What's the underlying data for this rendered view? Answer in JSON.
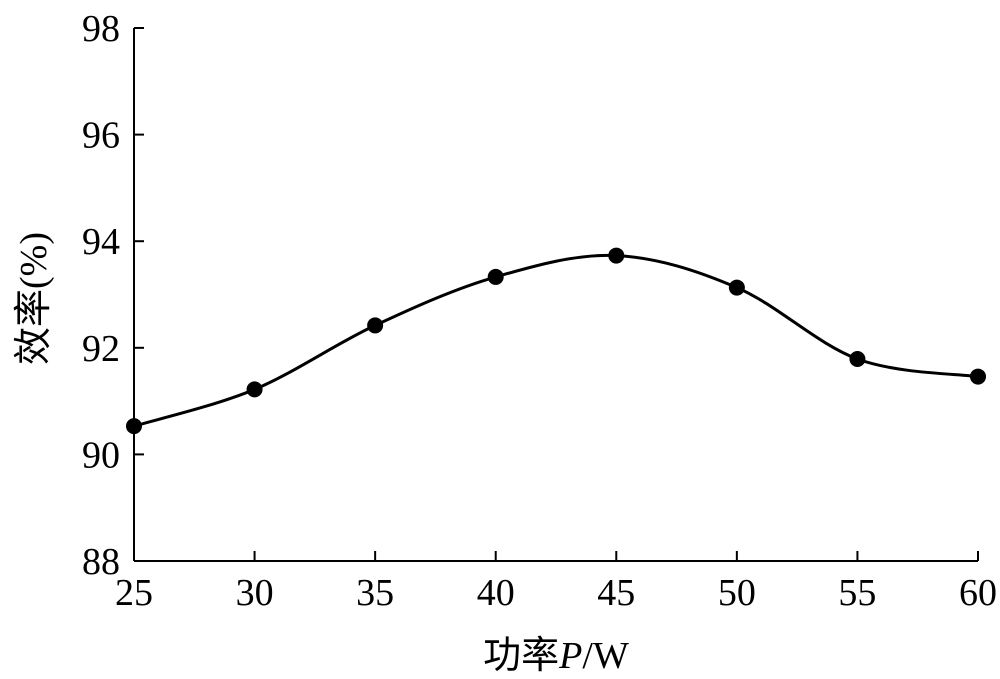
{
  "chart_data": {
    "type": "line",
    "xlabel_prefix": "功率",
    "xlabel_var": "P",
    "xlabel_suffix": "/W",
    "ylabel": "效率(%)",
    "x": [
      25,
      30,
      35,
      40,
      45,
      50,
      55,
      60
    ],
    "series": [
      {
        "values": [
          90.53,
          91.22,
          92.42,
          93.33,
          93.73,
          93.13,
          91.79,
          91.46
        ]
      }
    ],
    "xlim": [
      25,
      60
    ],
    "ylim": [
      88,
      98
    ],
    "xticks": [
      "25",
      "30",
      "35",
      "40",
      "45",
      "50",
      "55",
      "60"
    ],
    "yticks": [
      "88",
      "90",
      "92",
      "94",
      "96",
      "98"
    ],
    "grid": false,
    "legend": false,
    "line_color": "#000000",
    "marker": "filled-circle"
  }
}
